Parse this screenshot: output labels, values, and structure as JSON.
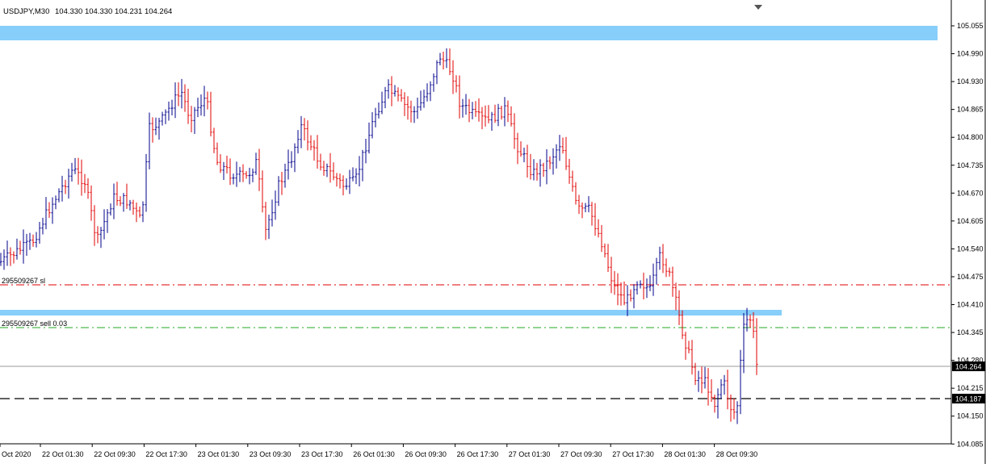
{
  "header": {
    "symbol": "USDJPY,M30",
    "ohlc": "104.330 104.330 104.231 104.264"
  },
  "price_axis": {
    "ticks": [
      "105.055",
      "104.990",
      "104.930",
      "104.865",
      "104.800",
      "104.735",
      "104.670",
      "104.605",
      "104.540",
      "104.475",
      "104.410",
      "104.345",
      "104.280",
      "104.215",
      "104.150",
      "104.085"
    ],
    "current_price": "104.264",
    "marker_price": "104.187"
  },
  "time_axis": {
    "labels": [
      "Oct 2020",
      "22 Oct 01:30",
      "22 Oct 09:30",
      "22 Oct 17:30",
      "23 Oct 01:30",
      "23 Oct 09:30",
      "23 Oct 17:30",
      "26 Oct 01:30",
      "26 Oct 09:30",
      "26 Oct 17:30",
      "27 Oct 01:30",
      "27 Oct 09:30",
      "27 Oct 17:30",
      "28 Oct 01:30",
      "28 Oct 09:30"
    ]
  },
  "order_lines": {
    "stop_loss_label": "295509267 sl",
    "order_label": "295509267 sell 0.03"
  },
  "colors": {
    "bull": "#00008b",
    "bear": "#e00000",
    "zone": "#87cefa",
    "sl_line": "#e00000",
    "order_line": "#22aa22"
  },
  "chart_data": {
    "type": "bar",
    "symbol": "USDJPY",
    "timeframe": "M30",
    "ohlc_last": {
      "open": 104.33,
      "high": 104.33,
      "low": 104.231,
      "close": 104.264
    },
    "price_range": [
      104.06,
      105.09
    ],
    "zones": [
      {
        "from": 105.025,
        "to": 105.055
      },
      {
        "from": 104.393,
        "to": 104.407
      }
    ],
    "lines": [
      {
        "price": 104.455,
        "kind": "stop-loss",
        "label": "295509267 sl"
      },
      {
        "price": 104.35,
        "kind": "sell-order",
        "label": "295509267 sell 0.03"
      },
      {
        "price": 104.264,
        "kind": "current-price"
      },
      {
        "price": 104.187,
        "kind": "dashed-level"
      }
    ]
  }
}
